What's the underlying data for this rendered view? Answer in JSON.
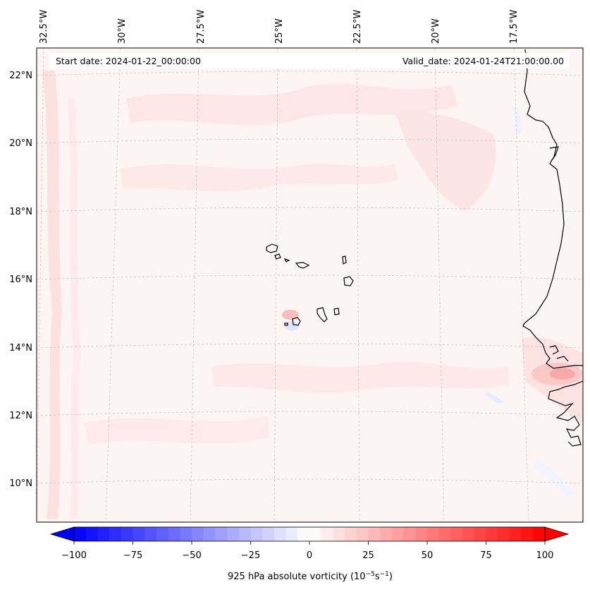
{
  "header": {
    "start_date": "Start date: 2024-01-22_00:00:00",
    "valid_date": "Valid_date: 2024-01-24T21:00:00.00"
  },
  "map": {
    "longitude_labels": [
      "32.5°W",
      "30°W",
      "27.5°W",
      "25°W",
      "22.5°W",
      "20°W",
      "17.5°W"
    ],
    "latitude_labels": [
      "22°N",
      "20°N",
      "18°N",
      "16°N",
      "14°N",
      "12°N",
      "10°N"
    ],
    "extent": {
      "lon_min": -33,
      "lon_max": -15.8,
      "lat_min": 8.8,
      "lat_max": 22.8
    },
    "gridlines": true,
    "colors": {
      "land_outline": "#000000",
      "gridline": "#c8c8c8",
      "background": "#fdf4f4"
    }
  },
  "colorbar": {
    "ticks": [
      "−100",
      "−75",
      "−50",
      "−25",
      "0",
      "25",
      "50",
      "75",
      "100"
    ],
    "min": -100,
    "max": 100,
    "label_main": "925 hPa absolute vorticity (10",
    "label_exp1": "−5",
    "label_mid": "s",
    "label_exp2": "−1",
    "label_end": ")",
    "colormap": "bwr",
    "colors": {
      "negative": "#0000ff",
      "zero": "#ffffff",
      "positive": "#ff0000"
    }
  }
}
